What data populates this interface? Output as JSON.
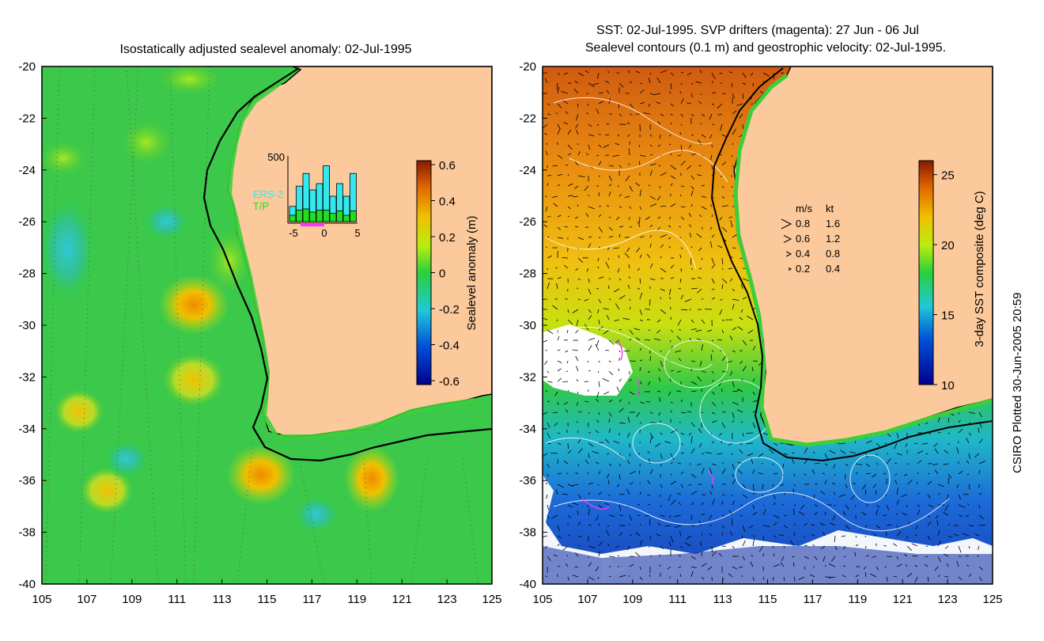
{
  "left_panel": {
    "title": "Isostatically adjusted sealevel anomaly: 02-Jul-1995",
    "colorbar": {
      "label": "Sealevel anomaly (m)",
      "ticks": [
        "0.6",
        "0.4",
        "0.2",
        "0",
        "-0.2",
        "-0.4",
        "-0.6"
      ],
      "range": [
        -0.6,
        0.6
      ]
    },
    "inset": {
      "ymax_label": "500",
      "series": [
        "ERS-2",
        "T/P"
      ],
      "xticks": [
        "-5",
        "0",
        "5"
      ],
      "ers2_counts": [
        120,
        280,
        380,
        250,
        300,
        440,
        200,
        300,
        200,
        380
      ],
      "tp_counts": [
        100,
        180,
        200,
        150,
        180,
        180,
        130,
        170,
        100,
        170
      ],
      "colors": {
        "ers2": "#33e8ee",
        "tp": "#22dd22"
      }
    }
  },
  "right_panel": {
    "title_line1": "SST: 02-Jul-1995. SVP drifters (magenta): 27 Jun - 06 Jul",
    "title_line2": "Sealevel contours (0.1 m) and geostrophic velocity: 02-Jul-1995.",
    "colorbar": {
      "label": "3-day SST composite (deg C)",
      "ticks": [
        "25",
        "20",
        "15",
        "10"
      ],
      "range": [
        10,
        26
      ]
    },
    "velocity_key": {
      "headers": [
        "m/s",
        "kt"
      ],
      "rows": [
        [
          "0.8",
          "1.6"
        ],
        [
          "0.6",
          "1.2"
        ],
        [
          "0.4",
          "0.8"
        ],
        [
          "0.2",
          "0.4"
        ]
      ]
    }
  },
  "axes": {
    "lat_ticks": [
      "-20",
      "-22",
      "-24",
      "-26",
      "-28",
      "-30",
      "-32",
      "-34",
      "-36",
      "-38",
      "-40"
    ],
    "lon_ticks": [
      "105",
      "107",
      "109",
      "111",
      "113",
      "115",
      "117",
      "119",
      "121",
      "123",
      "125"
    ],
    "lon_range": [
      105,
      125
    ],
    "lat_range": [
      -40,
      -20
    ]
  },
  "credit": "CSIRO Plotted 30-Jun-2005 20:59",
  "colors": {
    "land": "#fbc99b",
    "coast": "#000000",
    "shelf_green": "#3ccf3c"
  }
}
